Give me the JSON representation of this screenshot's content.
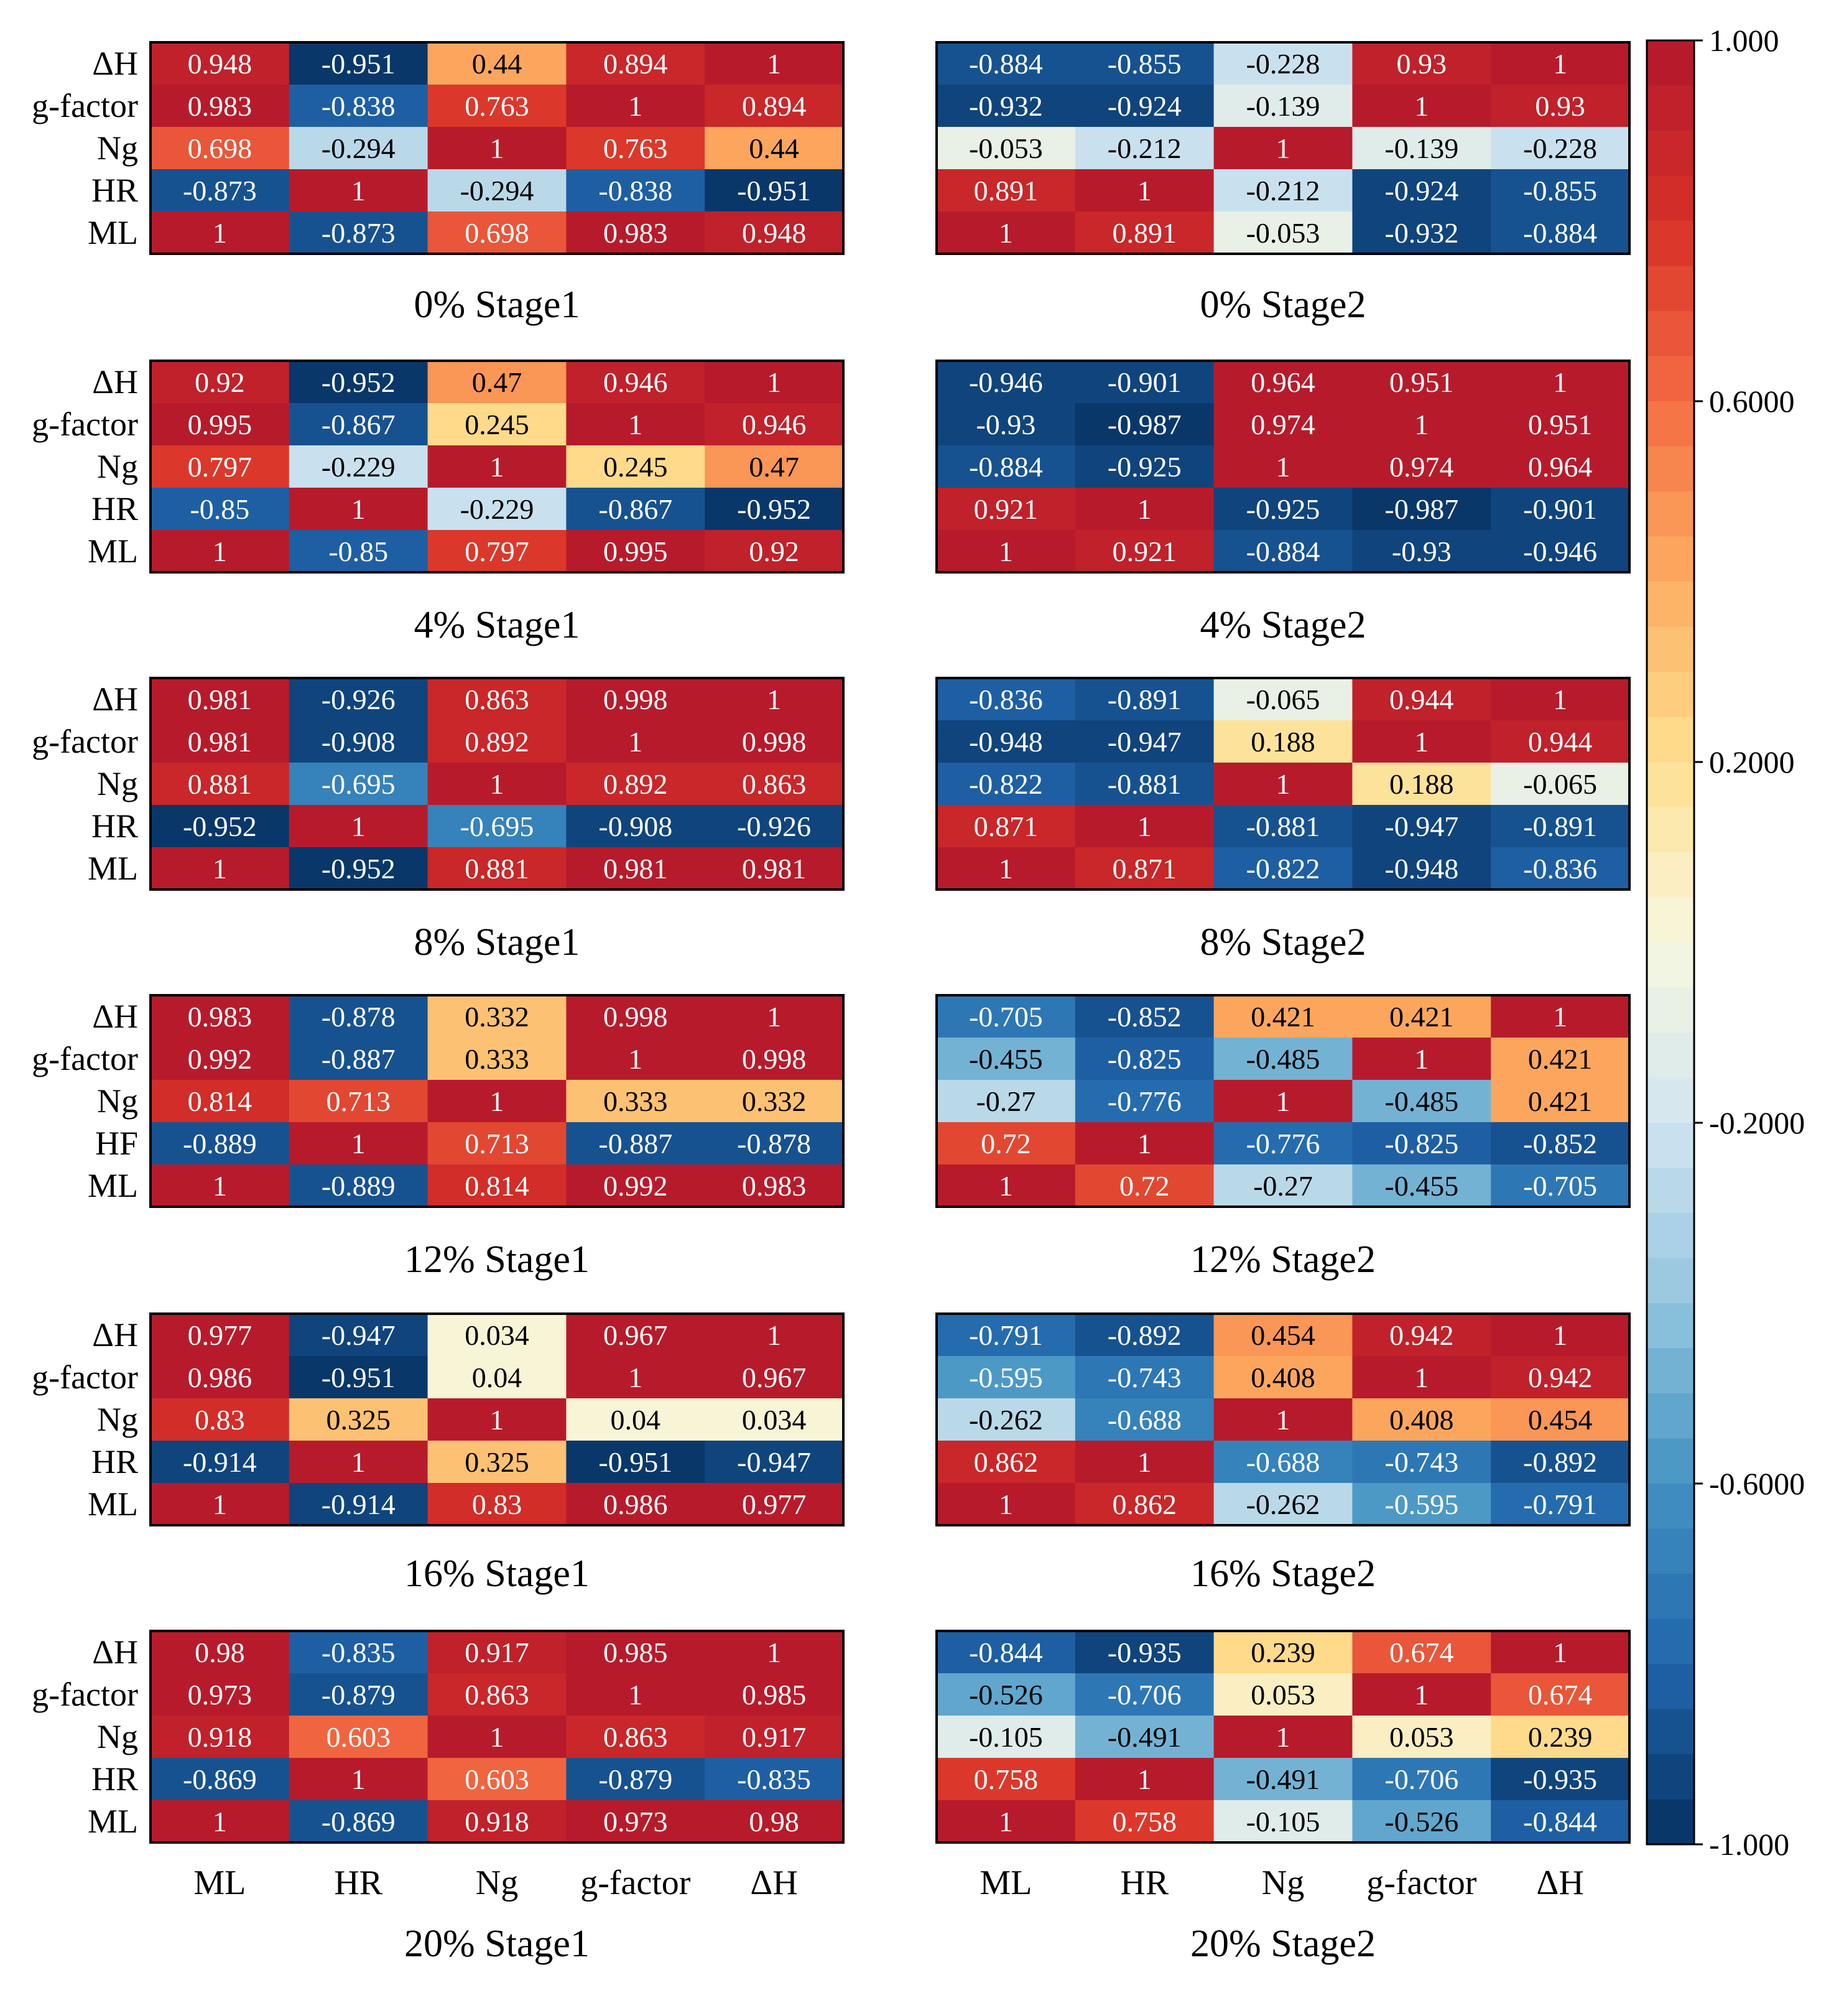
{
  "chart_data": {
    "type": "heatmap",
    "colorbar": {
      "min": -1.0,
      "max": 1.0,
      "tick_labels": [
        "1.000",
        "0.6000",
        "0.2000",
        "-0.2000",
        "-0.6000",
        "-1.000"
      ],
      "tick_values": [
        1.0,
        0.6,
        0.2,
        -0.2,
        -0.6,
        -1.0
      ],
      "colormap": "RdYlBu_r (discretized, 40 levels)"
    },
    "col_labels": [
      "ML",
      "HR",
      "Ng",
      "g-factor",
      "ΔH"
    ],
    "panels": [
      {
        "title": "0% Stage1",
        "rows": [
          "ΔH",
          "g-factor",
          "Ng",
          "HR",
          "ML"
        ],
        "values": [
          [
            "0.948",
            "-0.951",
            "0.44",
            "0.894",
            "1"
          ],
          [
            "0.983",
            "-0.838",
            "0.763",
            "1",
            "0.894"
          ],
          [
            "0.698",
            "-0.294",
            "1",
            "0.763",
            "0.44"
          ],
          [
            "-0.873",
            "1",
            "-0.294",
            "-0.838",
            "-0.951"
          ],
          [
            "1",
            "-0.873",
            "0.698",
            "0.983",
            "0.948"
          ]
        ]
      },
      {
        "title": "0% Stage2",
        "rows": [
          "ΔH",
          "g-factor",
          "Ng",
          "HR",
          "ML"
        ],
        "values": [
          [
            "-0.884",
            "-0.855",
            "-0.228",
            "0.93",
            "1"
          ],
          [
            "-0.932",
            "-0.924",
            "-0.139",
            "1",
            "0.93"
          ],
          [
            "-0.053",
            "-0.212",
            "1",
            "-0.139",
            "-0.228"
          ],
          [
            "0.891",
            "1",
            "-0.212",
            "-0.924",
            "-0.855"
          ],
          [
            "1",
            "0.891",
            "-0.053",
            "-0.932",
            "-0.884"
          ]
        ]
      },
      {
        "title": "4% Stage1",
        "rows": [
          "ΔH",
          "g-factor",
          "Ng",
          "HR",
          "ML"
        ],
        "values": [
          [
            "0.92",
            "-0.952",
            "0.47",
            "0.946",
            "1"
          ],
          [
            "0.995",
            "-0.867",
            "0.245",
            "1",
            "0.946"
          ],
          [
            "0.797",
            "-0.229",
            "1",
            "0.245",
            "0.47"
          ],
          [
            "-0.85",
            "1",
            "-0.229",
            "-0.867",
            "-0.952"
          ],
          [
            "1",
            "-0.85",
            "0.797",
            "0.995",
            "0.92"
          ]
        ]
      },
      {
        "title": "4% Stage2",
        "rows": [
          "ΔH",
          "g-factor",
          "Ng",
          "HR",
          "ML"
        ],
        "values": [
          [
            "-0.946",
            "-0.901",
            "0.964",
            "0.951",
            "1"
          ],
          [
            "-0.93",
            "-0.987",
            "0.974",
            "1",
            "0.951"
          ],
          [
            "-0.884",
            "-0.925",
            "1",
            "0.974",
            "0.964"
          ],
          [
            "0.921",
            "1",
            "-0.925",
            "-0.987",
            "-0.901"
          ],
          [
            "1",
            "0.921",
            "-0.884",
            "-0.93",
            "-0.946"
          ]
        ]
      },
      {
        "title": "8% Stage1",
        "rows": [
          "ΔH",
          "g-factor",
          "Ng",
          "HR",
          "ML"
        ],
        "values": [
          [
            "0.981",
            "-0.926",
            "0.863",
            "0.998",
            "1"
          ],
          [
            "0.981",
            "-0.908",
            "0.892",
            "1",
            "0.998"
          ],
          [
            "0.881",
            "-0.695",
            "1",
            "0.892",
            "0.863"
          ],
          [
            "-0.952",
            "1",
            "-0.695",
            "-0.908",
            "-0.926"
          ],
          [
            "1",
            "-0.952",
            "0.881",
            "0.981",
            "0.981"
          ]
        ]
      },
      {
        "title": "8% Stage2",
        "rows": [
          "ΔH",
          "g-factor",
          "Ng",
          "HR",
          "ML"
        ],
        "values": [
          [
            "-0.836",
            "-0.891",
            "-0.065",
            "0.944",
            "1"
          ],
          [
            "-0.948",
            "-0.947",
            "0.188",
            "1",
            "0.944"
          ],
          [
            "-0.822",
            "-0.881",
            "1",
            "0.188",
            "-0.065"
          ],
          [
            "0.871",
            "1",
            "-0.881",
            "-0.947",
            "-0.891"
          ],
          [
            "1",
            "0.871",
            "-0.822",
            "-0.948",
            "-0.836"
          ]
        ]
      },
      {
        "title": "12% Stage1",
        "rows": [
          "ΔH",
          "g-factor",
          "Ng",
          "HF",
          "ML"
        ],
        "values": [
          [
            "0.983",
            "-0.878",
            "0.332",
            "0.998",
            "1"
          ],
          [
            "0.992",
            "-0.887",
            "0.333",
            "1",
            "0.998"
          ],
          [
            "0.814",
            "0.713",
            "1",
            "0.333",
            "0.332"
          ],
          [
            "-0.889",
            "1",
            "0.713",
            "-0.887",
            "-0.878"
          ],
          [
            "1",
            "-0.889",
            "0.814",
            "0.992",
            "0.983"
          ]
        ]
      },
      {
        "title": "12% Stage2",
        "rows": [
          "ΔH",
          "g-factor",
          "Ng",
          "HF",
          "ML"
        ],
        "values": [
          [
            "-0.705",
            "-0.852",
            "0.421",
            "0.421",
            "1"
          ],
          [
            "-0.455",
            "-0.825",
            "-0.485",
            "1",
            "0.421"
          ],
          [
            "-0.27",
            "-0.776",
            "1",
            "-0.485",
            "0.421"
          ],
          [
            "0.72",
            "1",
            "-0.776",
            "-0.825",
            "-0.852"
          ],
          [
            "1",
            "0.72",
            "-0.27",
            "-0.455",
            "-0.705"
          ]
        ]
      },
      {
        "title": "16% Stage1",
        "rows": [
          "ΔH",
          "g-factor",
          "Ng",
          "HR",
          "ML"
        ],
        "values": [
          [
            "0.977",
            "-0.947",
            "0.034",
            "0.967",
            "1"
          ],
          [
            "0.986",
            "-0.951",
            "0.04",
            "1",
            "0.967"
          ],
          [
            "0.83",
            "0.325",
            "1",
            "0.04",
            "0.034"
          ],
          [
            "-0.914",
            "1",
            "0.325",
            "-0.951",
            "-0.947"
          ],
          [
            "1",
            "-0.914",
            "0.83",
            "0.986",
            "0.977"
          ]
        ]
      },
      {
        "title": "16% Stage2",
        "rows": [
          "ΔH",
          "g-factor",
          "Ng",
          "HR",
          "ML"
        ],
        "values": [
          [
            "-0.791",
            "-0.892",
            "0.454",
            "0.942",
            "1"
          ],
          [
            "-0.595",
            "-0.743",
            "0.408",
            "1",
            "0.942"
          ],
          [
            "-0.262",
            "-0.688",
            "1",
            "0.408",
            "0.454"
          ],
          [
            "0.862",
            "1",
            "-0.688",
            "-0.743",
            "-0.892"
          ],
          [
            "1",
            "0.862",
            "-0.262",
            "-0.595",
            "-0.791"
          ]
        ]
      },
      {
        "title": "20% Stage1",
        "rows": [
          "ΔH",
          "g-factor",
          "Ng",
          "HR",
          "ML"
        ],
        "values": [
          [
            "0.98",
            "-0.835",
            "0.917",
            "0.985",
            "1"
          ],
          [
            "0.973",
            "-0.879",
            "0.863",
            "1",
            "0.985"
          ],
          [
            "0.918",
            "0.603",
            "1",
            "0.863",
            "0.917"
          ],
          [
            "-0.869",
            "1",
            "0.603",
            "-0.879",
            "-0.835"
          ],
          [
            "1",
            "-0.869",
            "0.918",
            "0.973",
            "0.98"
          ]
        ]
      },
      {
        "title": "20% Stage2",
        "rows": [
          "ΔH",
          "g-factor",
          "Ng",
          "HR",
          "ML"
        ],
        "values": [
          [
            "-0.844",
            "-0.935",
            "0.239",
            "0.674",
            "1"
          ],
          [
            "-0.526",
            "-0.706",
            "0.053",
            "1",
            "0.674"
          ],
          [
            "-0.105",
            "-0.491",
            "1",
            "0.053",
            "0.239"
          ],
          [
            "0.758",
            "1",
            "-0.491",
            "-0.706",
            "-0.935"
          ],
          [
            "1",
            "0.758",
            "-0.105",
            "-0.526",
            "-0.844"
          ]
        ]
      }
    ]
  }
}
